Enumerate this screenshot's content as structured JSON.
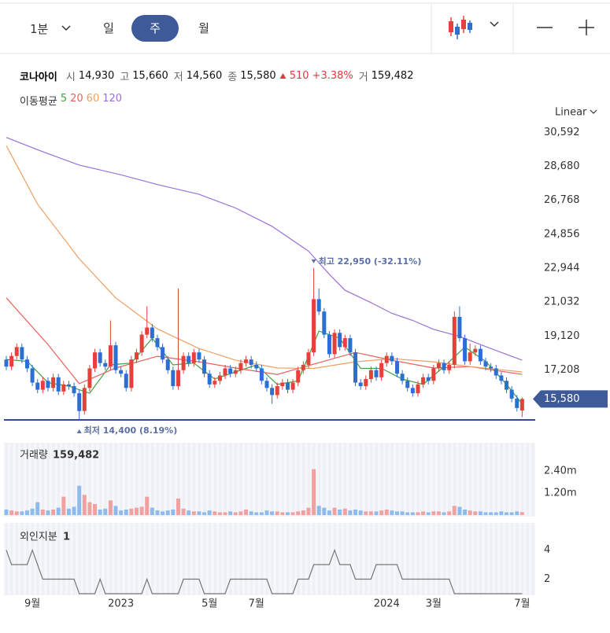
{
  "toolbar": {
    "interval": "1분",
    "tabs": [
      "일",
      "주",
      "월"
    ],
    "selected_tab": 1
  },
  "quote": {
    "name": "코나아이",
    "fields": [
      {
        "label": "시",
        "value": "14,930"
      },
      {
        "label": "고",
        "value": "15,660"
      },
      {
        "label": "저",
        "value": "14,560"
      },
      {
        "label": "종",
        "value": "15,580"
      }
    ],
    "change": "510",
    "change_pct": "+3.38%",
    "volume": {
      "label": "거",
      "value": "159,482"
    }
  },
  "chart_data": [
    {
      "type": "candlestick",
      "legend_title": "이동평균",
      "scale": "Linear",
      "last_price_label": "15,580",
      "up_color": "#e5413a",
      "down_color": "#2c6fd3",
      "ylim": [
        14400,
        31400
      ],
      "yticks": [
        {
          "value": 30592,
          "label": "30,592"
        },
        {
          "value": 28680,
          "label": "28,680"
        },
        {
          "value": 26768,
          "label": "26,768"
        },
        {
          "value": 24856,
          "label": "24,856"
        },
        {
          "value": 22944,
          "label": "22,944"
        },
        {
          "value": 21032,
          "label": "21,032"
        },
        {
          "value": 19120,
          "label": "19,120"
        },
        {
          "value": 17208,
          "label": "17,208"
        }
      ],
      "annotations": [
        {
          "text": "최고 22,950 (-32.11%)"
        },
        {
          "text": "최저 14,400 (8.19%)"
        }
      ],
      "open": [
        17800,
        17400,
        18000,
        18500,
        17800,
        17300,
        16500,
        16100,
        16600,
        16200,
        16800,
        16000,
        16400,
        16300,
        15900,
        14900,
        16200,
        17300,
        18200,
        17600,
        17400,
        18600,
        17200,
        17000,
        16200,
        17800,
        18200,
        19200,
        19600,
        19000,
        18500,
        17800,
        17200,
        16300,
        17200,
        18000,
        17600,
        18200,
        17800,
        17000,
        16400,
        16600,
        16900,
        17300,
        17000,
        17200,
        17600,
        17800,
        17500,
        17300,
        16600,
        16200,
        15800,
        16300,
        16500,
        16100,
        16500,
        17200,
        17500,
        18200,
        21200,
        20500,
        19200,
        18100,
        19300,
        18500,
        19000,
        18200,
        16500,
        16300,
        16700,
        17200,
        16800,
        17600,
        18000,
        17700,
        17000,
        16600,
        16200,
        15900,
        16400,
        16800,
        16600,
        17300,
        17600,
        17200,
        17500,
        20200,
        19000,
        17700,
        18200,
        18400,
        17700,
        17400,
        17300,
        16900,
        16600,
        16100,
        15600,
        14930
      ],
      "high": [
        18000,
        18200,
        18700,
        18700,
        18000,
        17500,
        16700,
        16800,
        16800,
        17000,
        17000,
        16600,
        16600,
        16500,
        16100,
        16400,
        17500,
        18400,
        18400,
        17800,
        20000,
        18800,
        17400,
        17200,
        18000,
        18400,
        19400,
        20800,
        19800,
        19200,
        18700,
        18000,
        17400,
        21800,
        18200,
        18200,
        18400,
        18400,
        18000,
        17200,
        16800,
        17100,
        17500,
        17500,
        17400,
        17800,
        18000,
        18000,
        17700,
        17500,
        16800,
        16400,
        16500,
        16700,
        16700,
        16700,
        17400,
        17700,
        18400,
        22950,
        21800,
        20700,
        19400,
        19500,
        19500,
        19200,
        19200,
        18400,
        16700,
        16900,
        17400,
        17400,
        17800,
        18200,
        18200,
        17900,
        17200,
        16800,
        16400,
        16600,
        17000,
        17000,
        17500,
        17800,
        17800,
        17700,
        20500,
        20800,
        19200,
        18700,
        18600,
        18600,
        17900,
        17600,
        17500,
        17100,
        16800,
        16300,
        15800,
        15660
      ],
      "low": [
        17200,
        17200,
        17800,
        17600,
        17100,
        16300,
        15900,
        15900,
        16000,
        16000,
        15800,
        15800,
        16100,
        15700,
        14400,
        14700,
        16000,
        17100,
        17400,
        17200,
        17200,
        17000,
        16800,
        16000,
        16000,
        17600,
        18000,
        19000,
        18800,
        18300,
        17600,
        17000,
        16100,
        16100,
        17000,
        17400,
        17400,
        17600,
        16800,
        16200,
        16200,
        16400,
        16700,
        16800,
        16800,
        17000,
        17400,
        17300,
        17100,
        16400,
        16000,
        15300,
        15600,
        16100,
        15900,
        15900,
        16300,
        17000,
        17300,
        18000,
        20300,
        19000,
        17900,
        17900,
        18300,
        18300,
        18000,
        16300,
        16100,
        16100,
        16500,
        16600,
        16600,
        17400,
        17500,
        16800,
        16400,
        16000,
        15700,
        15700,
        16200,
        16400,
        16400,
        17100,
        17000,
        17000,
        17300,
        18800,
        17500,
        17500,
        18000,
        17500,
        17200,
        17100,
        16700,
        16400,
        15900,
        15400,
        14870,
        14560
      ],
      "close": [
        17400,
        18000,
        18500,
        17800,
        17300,
        16500,
        16100,
        16600,
        16200,
        16800,
        16000,
        16400,
        16300,
        15900,
        14900,
        16200,
        17300,
        18200,
        17600,
        17400,
        18600,
        17200,
        17000,
        16200,
        17800,
        18200,
        19200,
        19600,
        19000,
        18500,
        17800,
        17200,
        16300,
        17200,
        18000,
        17600,
        18200,
        17800,
        17000,
        16400,
        16600,
        16900,
        17300,
        17000,
        17200,
        17600,
        17800,
        17500,
        17300,
        16600,
        16200,
        15800,
        16300,
        16500,
        16100,
        16500,
        17200,
        17500,
        18200,
        21200,
        20500,
        19200,
        18100,
        19300,
        18500,
        19000,
        18200,
        16500,
        16300,
        16700,
        17200,
        16800,
        17600,
        18000,
        17700,
        17000,
        16600,
        16200,
        15900,
        16400,
        16800,
        16600,
        17300,
        17600,
        17200,
        17500,
        20200,
        19000,
        17700,
        18200,
        18400,
        17700,
        17400,
        17300,
        16900,
        16600,
        16100,
        15600,
        15070,
        15580
      ],
      "series": [
        {
          "name": "5",
          "color": "#3fa33f",
          "x": [
            0,
            4,
            8,
            12,
            16,
            20,
            24,
            28,
            32,
            36,
            40,
            44,
            48,
            52,
            56,
            60,
            64,
            68,
            72,
            76,
            80,
            84,
            88,
            92,
            96,
            99
          ],
          "values": [
            17800,
            17700,
            16500,
            16300,
            15900,
            17500,
            17600,
            19000,
            17500,
            17600,
            16700,
            17100,
            17500,
            16400,
            16600,
            19400,
            19000,
            17300,
            17300,
            16700,
            16400,
            17400,
            18500,
            17700,
            16400,
            15300
          ]
        },
        {
          "name": "20",
          "color": "#e8605a",
          "x": [
            0,
            8,
            14,
            21,
            29,
            37,
            44,
            52,
            59,
            67,
            74,
            82,
            89,
            99
          ],
          "values": [
            21270,
            18640,
            16440,
            17320,
            17980,
            17670,
            17320,
            16960,
            17540,
            18200,
            17760,
            17320,
            17400,
            16960
          ]
        },
        {
          "name": "60",
          "color": "#f0a060",
          "x": [
            0,
            6,
            14,
            21,
            29,
            37,
            44,
            52,
            59,
            67,
            74,
            82,
            89,
            99
          ],
          "values": [
            29840,
            26550,
            23470,
            21270,
            19520,
            18420,
            17760,
            17320,
            17300,
            17670,
            17850,
            17670,
            17400,
            17100
          ]
        },
        {
          "name": "120",
          "color": "#9b6fd6",
          "x": [
            0,
            7,
            14,
            22,
            29,
            37,
            44,
            51,
            58,
            62,
            65,
            70,
            74,
            78,
            82,
            87,
            91,
            95,
            99
          ],
          "values": [
            30300,
            29500,
            28750,
            28200,
            27650,
            27100,
            26330,
            25300,
            23900,
            22600,
            21700,
            21000,
            20400,
            20000,
            19500,
            19100,
            18640,
            18200,
            17760
          ]
        }
      ]
    },
    {
      "type": "bar",
      "title": "거래량",
      "title_value": "159,482",
      "up_color": "#f2a1a1",
      "down_color": "#8dbbed",
      "ylim": [
        0,
        3600000
      ],
      "yticks": [
        {
          "value": 2400000,
          "label": "2.40m"
        },
        {
          "value": 1200000,
          "label": "1.20m"
        }
      ],
      "values": [
        300000,
        250000,
        200000,
        200000,
        250000,
        350000,
        700000,
        300000,
        250000,
        300000,
        400000,
        1000000,
        350000,
        450000,
        1600000,
        1100000,
        700000,
        600000,
        300000,
        350000,
        800000,
        500000,
        250000,
        300000,
        350000,
        400000,
        450000,
        1000000,
        400000,
        250000,
        200000,
        250000,
        300000,
        900000,
        350000,
        250000,
        200000,
        200000,
        150000,
        250000,
        200000,
        150000,
        150000,
        200000,
        150000,
        200000,
        300000,
        200000,
        150000,
        150000,
        250000,
        200000,
        200000,
        150000,
        150000,
        150000,
        200000,
        250000,
        400000,
        2500000,
        500000,
        400000,
        250000,
        400000,
        300000,
        350000,
        250000,
        300000,
        250000,
        200000,
        200000,
        200000,
        250000,
        300000,
        250000,
        200000,
        200000,
        150000,
        150000,
        150000,
        200000,
        150000,
        200000,
        200000,
        150000,
        200000,
        500000,
        450000,
        300000,
        250000,
        200000,
        200000,
        150000,
        150000,
        150000,
        200000,
        150000,
        150000,
        200000,
        159482
      ]
    },
    {
      "type": "line",
      "title": "외인지분",
      "title_value": 1,
      "color": "#777777",
      "ylim": [
        1,
        5.6
      ],
      "yticks": [
        4,
        2
      ],
      "categories": [
        null,
        null,
        null,
        null,
        null,
        "9월",
        null,
        null,
        null,
        null,
        null,
        null,
        null,
        null,
        null,
        null,
        null,
        null,
        null,
        null,
        null,
        null,
        "2023",
        null,
        null,
        null,
        null,
        null,
        null,
        null,
        null,
        null,
        null,
        null,
        null,
        null,
        null,
        null,
        null,
        "5월",
        null,
        null,
        null,
        null,
        null,
        null,
        null,
        null,
        "7월",
        null,
        null,
        null,
        null,
        null,
        null,
        null,
        null,
        null,
        null,
        null,
        null,
        null,
        null,
        null,
        null,
        null,
        null,
        null,
        null,
        null,
        null,
        null,
        null,
        "2024",
        null,
        null,
        null,
        null,
        null,
        null,
        null,
        null,
        "3월",
        null,
        null,
        null,
        null,
        null,
        null,
        null,
        null,
        null,
        null,
        null,
        null,
        null,
        null,
        null,
        null,
        "7월"
      ],
      "values": [
        4,
        3,
        3,
        3,
        3,
        4,
        3,
        2,
        2,
        2,
        2,
        2,
        2,
        2,
        1,
        1,
        1,
        1,
        2,
        1,
        1,
        1,
        1,
        1,
        1,
        1,
        1,
        2,
        1,
        1,
        1,
        1,
        1,
        1,
        2,
        2,
        2,
        2,
        1,
        1,
        1,
        1,
        1,
        2,
        2,
        2,
        2,
        2,
        2,
        2,
        2,
        1,
        1,
        1,
        1,
        1,
        2,
        2,
        2,
        3,
        3,
        3,
        3,
        4,
        3,
        3,
        3,
        2,
        2,
        2,
        2,
        3,
        3,
        3,
        3,
        3,
        2,
        2,
        2,
        2,
        2,
        2,
        2,
        2,
        2,
        2,
        1,
        1,
        1,
        1,
        1,
        1,
        1,
        1,
        1,
        1,
        1,
        1,
        1,
        1
      ]
    }
  ]
}
